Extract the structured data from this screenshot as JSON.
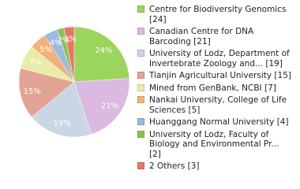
{
  "chart_data": {
    "type": "pie",
    "categories": [
      "Centre for Biodiversity Genomics [24]",
      "Canadian Centre for DNA Barcoding [21]",
      "University of Lodz, Department of Invertebrate Zoology and... [19]",
      "Tianjin Agricultural University [15]",
      "Mined from GenBank, NCBI [7]",
      "Nankai University, College of Life Sciences [5]",
      "Huanggang Normal University [4]",
      "University of Lodz, Faculty of Biology and Environmental Pr... [2]",
      "2 Others [3]"
    ],
    "values": [
      24,
      21,
      19,
      15,
      7,
      5,
      4,
      2,
      3
    ],
    "value_labels": [
      "24%",
      "21%",
      "19%",
      "15%",
      "7%",
      "5%",
      "4%",
      "2%",
      "3%"
    ],
    "colors": [
      "#9cd55e",
      "#dbb9e0",
      "#c9d6e4",
      "#e2a395",
      "#e9eca6",
      "#f2b277",
      "#9cb9df",
      "#8fc157",
      "#e47867"
    ]
  }
}
